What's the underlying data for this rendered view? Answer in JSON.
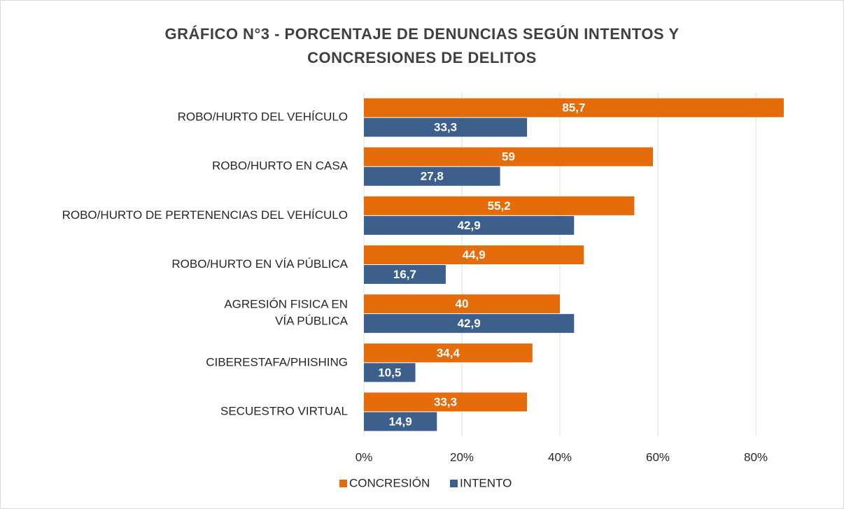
{
  "chart_data": {
    "type": "bar",
    "orientation": "horizontal",
    "title": "GRÁFICO N°3 - PORCENTAJE DE DENUNCIAS SEGÚN INTENTOS Y\nCONCRESIONES DE DELITOS",
    "categories": [
      "ROBO/HURTO DEL VEHÍCULO",
      "ROBO/HURTO EN CASA",
      "ROBO/HURTO DE PERTENENCIAS DEL VEHÍCULO",
      "ROBO/HURTO EN VÍA PÚBLICA",
      "AGRESIÓN FISICA EN\nVÍA PÚBLICA",
      "CIBERESTAFA/PHISHING",
      "SECUESTRO VIRTUAL"
    ],
    "series": [
      {
        "name": "CONCRESIÓN",
        "color": "#e46c0a",
        "values": [
          85.7,
          59,
          55.2,
          44.9,
          40,
          34.4,
          33.3
        ],
        "value_labels": [
          "85,7",
          "59",
          "55,2",
          "44,9",
          "40",
          "34,4",
          "33,3"
        ]
      },
      {
        "name": "INTENTO",
        "color": "#3c5f8c",
        "values": [
          33.3,
          27.8,
          42.9,
          16.7,
          42.9,
          10.5,
          14.9
        ],
        "value_labels": [
          "33,3",
          "27,8",
          "42,9",
          "16,7",
          "42,9",
          "10,5",
          "14,9"
        ]
      }
    ],
    "xlim": [
      0,
      90
    ],
    "xticks": [
      {
        "value": 0,
        "label": "0%"
      },
      {
        "value": 20,
        "label": "20%"
      },
      {
        "value": 40,
        "label": "40%"
      },
      {
        "value": 60,
        "label": "60%"
      },
      {
        "value": 80,
        "label": "80%"
      }
    ],
    "grid": true,
    "legend": "bottom"
  }
}
